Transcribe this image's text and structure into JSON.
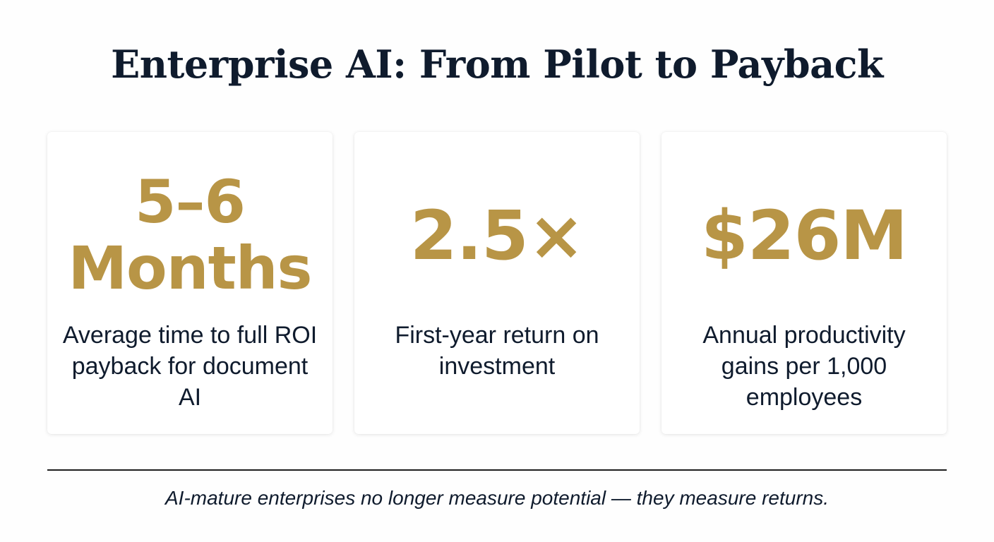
{
  "title": "Enterprise AI: From Pilot to Payback",
  "accent_color": "#b89546",
  "text_color": "#0f1b2d",
  "cards": [
    {
      "stat_lines": [
        "5–6",
        "Months"
      ],
      "description": "Average time to full ROI payback for document AI"
    },
    {
      "stat_lines": [
        "2.5×"
      ],
      "description": "First-year return on investment"
    },
    {
      "stat_lines": [
        "$26M"
      ],
      "description": "Annual productivity gains per 1,000 employees"
    }
  ],
  "footer": "AI-mature enterprises no longer measure potential — they measure returns."
}
